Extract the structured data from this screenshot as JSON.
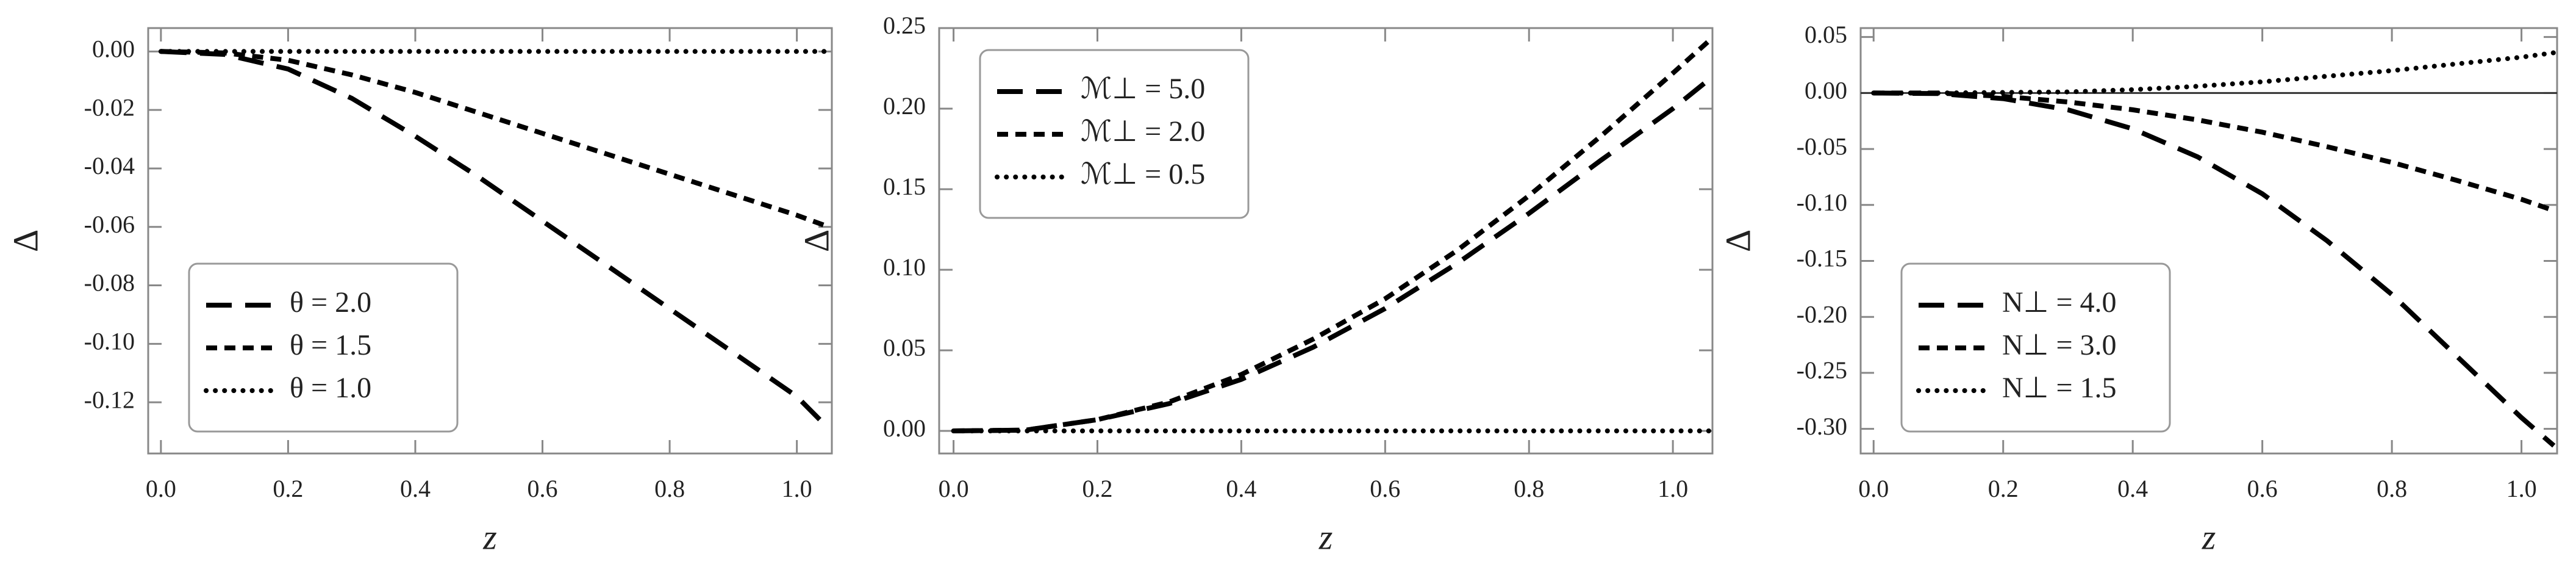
{
  "chart_data": [
    {
      "type": "line",
      "xlabel": "z",
      "ylabel": "Δ",
      "x": [
        0,
        0.1,
        0.2,
        0.3,
        0.4,
        0.5,
        0.6,
        0.7,
        0.8,
        0.9,
        1.0,
        1.05
      ],
      "xlim": [
        -0.02,
        1.055
      ],
      "ylim": [
        -0.1375,
        0.008
      ],
      "xticks": [
        {
          "value": 0,
          "label": "0.0"
        },
        {
          "value": 0.2,
          "label": "0.2"
        },
        {
          "value": 0.4,
          "label": "0.4"
        },
        {
          "value": 0.6,
          "label": "0.6"
        },
        {
          "value": 0.8,
          "label": "0.8"
        },
        {
          "value": 1.0,
          "label": "1.0"
        }
      ],
      "yticks": [
        {
          "value": 0,
          "label": "0.00"
        },
        {
          "value": -0.02,
          "label": "-0.02"
        },
        {
          "value": -0.04,
          "label": "-0.04"
        },
        {
          "value": -0.06,
          "label": "-0.06"
        },
        {
          "value": -0.08,
          "label": "-0.08"
        },
        {
          "value": -0.1,
          "label": "-0.10"
        },
        {
          "value": -0.12,
          "label": "-0.12"
        }
      ],
      "legend": "lower left",
      "zero_line": false,
      "series": [
        {
          "name": "θ = 2.0",
          "color": "#000000",
          "dash": "long",
          "values": [
            0,
            -0.001,
            -0.006,
            -0.016,
            -0.029,
            -0.043,
            -0.058,
            -0.073,
            -0.088,
            -0.103,
            -0.118,
            -0.129
          ]
        },
        {
          "name": "θ = 1.5",
          "color": "#000000",
          "dash": "short",
          "values": [
            0,
            -0.0005,
            -0.003,
            -0.008,
            -0.014,
            -0.021,
            -0.028,
            -0.035,
            -0.042,
            -0.049,
            -0.056,
            -0.06
          ]
        },
        {
          "name": "θ = 1.0",
          "color": "#000000",
          "dash": "dot",
          "values": [
            0,
            0,
            0,
            0,
            0,
            0,
            0,
            0,
            0,
            0,
            0,
            0
          ]
        }
      ]
    },
    {
      "type": "line",
      "xlabel": "z",
      "ylabel": "Δ",
      "x": [
        0,
        0.1,
        0.2,
        0.3,
        0.4,
        0.5,
        0.6,
        0.7,
        0.8,
        0.9,
        1.0,
        1.05
      ],
      "xlim": [
        -0.02,
        1.055
      ],
      "ylim": [
        -0.014,
        0.25
      ],
      "xticks": [
        {
          "value": 0,
          "label": "0.0"
        },
        {
          "value": 0.2,
          "label": "0.2"
        },
        {
          "value": 0.4,
          "label": "0.4"
        },
        {
          "value": 0.6,
          "label": "0.6"
        },
        {
          "value": 0.8,
          "label": "0.8"
        },
        {
          "value": 1.0,
          "label": "1.0"
        }
      ],
      "yticks": [
        {
          "value": 0,
          "label": "0.00"
        },
        {
          "value": 0.05,
          "label": "0.05"
        },
        {
          "value": 0.1,
          "label": "0.10"
        },
        {
          "value": 0.15,
          "label": "0.15"
        },
        {
          "value": 0.2,
          "label": "0.20"
        },
        {
          "value": 0.25,
          "label": "0.25"
        }
      ],
      "legend": "upper left",
      "zero_line": false,
      "series": [
        {
          "name": "ℳ⊥ = 5.0",
          "color": "#000000",
          "dash": "long",
          "values": [
            0,
            0.0005,
            0.007,
            0.017,
            0.032,
            0.052,
            0.076,
            0.104,
            0.135,
            0.168,
            0.2,
            0.218
          ]
        },
        {
          "name": "ℳ⊥ = 2.0",
          "color": "#000000",
          "dash": "short",
          "values": [
            0,
            0.0005,
            0.007,
            0.018,
            0.035,
            0.057,
            0.082,
            0.112,
            0.146,
            0.183,
            0.222,
            0.242
          ]
        },
        {
          "name": "ℳ⊥ = 0.5",
          "color": "#000000",
          "dash": "dot",
          "values": [
            0,
            0,
            0,
            0,
            0,
            0,
            0,
            0,
            0,
            0,
            0,
            0
          ]
        }
      ]
    },
    {
      "type": "line",
      "xlabel": "z",
      "ylabel": "Δ",
      "x": [
        0,
        0.1,
        0.2,
        0.3,
        0.4,
        0.5,
        0.6,
        0.7,
        0.8,
        0.9,
        1.0,
        1.05
      ],
      "xlim": [
        -0.02,
        1.055
      ],
      "ylim": [
        -0.322,
        0.058
      ],
      "xticks": [
        {
          "value": 0,
          "label": "0.0"
        },
        {
          "value": 0.2,
          "label": "0.2"
        },
        {
          "value": 0.4,
          "label": "0.4"
        },
        {
          "value": 0.6,
          "label": "0.6"
        },
        {
          "value": 0.8,
          "label": "0.8"
        },
        {
          "value": 1.0,
          "label": "1.0"
        }
      ],
      "yticks": [
        {
          "value": 0.05,
          "label": "0.05"
        },
        {
          "value": 0,
          "label": "0.00"
        },
        {
          "value": -0.05,
          "label": "-0.05"
        },
        {
          "value": -0.1,
          "label": "-0.10"
        },
        {
          "value": -0.15,
          "label": "-0.15"
        },
        {
          "value": -0.2,
          "label": "-0.20"
        },
        {
          "value": -0.25,
          "label": "-0.25"
        },
        {
          "value": -0.3,
          "label": "-0.30"
        }
      ],
      "legend": "lower left",
      "zero_line": true,
      "series": [
        {
          "name": "N⊥ = 4.0",
          "color": "#000000",
          "dash": "long",
          "values": [
            0,
            -0.0005,
            -0.005,
            -0.015,
            -0.032,
            -0.057,
            -0.09,
            -0.132,
            -0.18,
            -0.235,
            -0.29,
            -0.315
          ]
        },
        {
          "name": "N⊥ = 3.0",
          "color": "#000000",
          "dash": "short",
          "values": [
            0,
            0,
            -0.003,
            -0.008,
            -0.015,
            -0.024,
            -0.035,
            -0.048,
            -0.062,
            -0.078,
            -0.095,
            -0.105
          ]
        },
        {
          "name": "N⊥ = 1.5",
          "color": "#000000",
          "dash": "dot",
          "values": [
            0,
            0,
            0.0005,
            0.001,
            0.003,
            0.006,
            0.01,
            0.015,
            0.02,
            0.026,
            0.032,
            0.036
          ]
        }
      ]
    }
  ]
}
